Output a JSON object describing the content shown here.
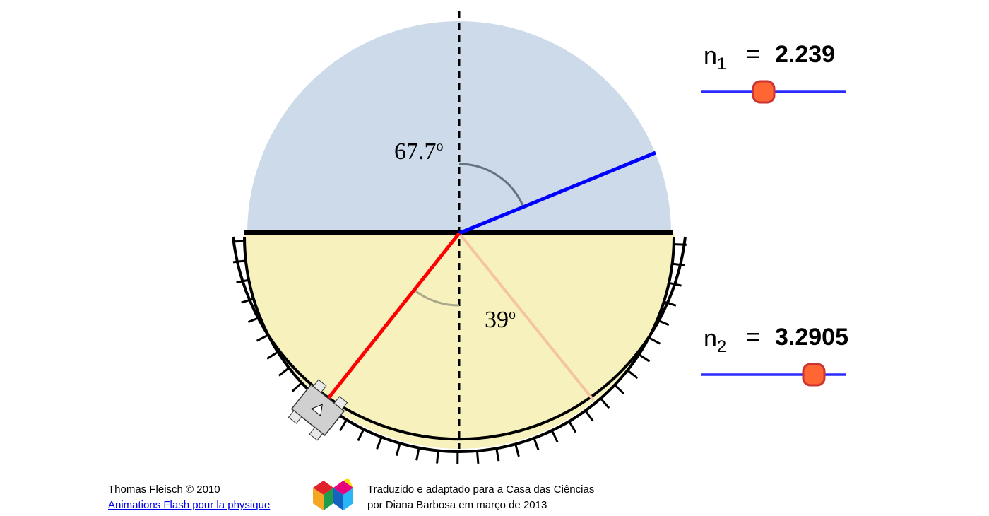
{
  "sliders": [
    {
      "symbol": "n",
      "index": "1",
      "equals": "=",
      "value": 2.239
    },
    {
      "symbol": "n",
      "index": "2",
      "equals": "=",
      "value": 3.2905
    }
  ],
  "angle_labels": [
    {
      "value": 67.7,
      "unit": "o"
    },
    {
      "value": 39,
      "unit": "o"
    }
  ],
  "credits": {
    "author": "Thomas Fleisch © 2010",
    "link": "Animations Flash pour la physique",
    "translation_line1": "Traduzido e adaptado para a Casa das Ciências",
    "translation_line2": "por Diana Barbosa em março de 2013"
  }
}
